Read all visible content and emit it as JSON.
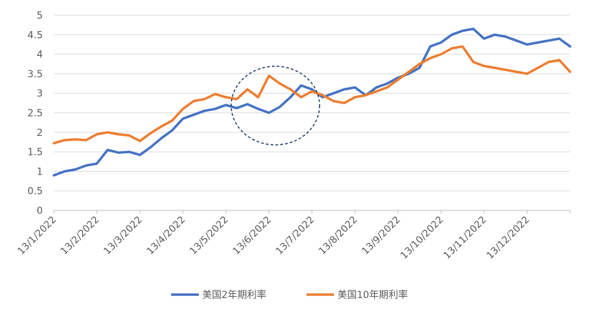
{
  "chart_data": {
    "type": "line",
    "title": "",
    "xlabel": "",
    "ylabel": "",
    "ylim": [
      0,
      5
    ],
    "yticks": [
      "0",
      "0.5",
      "1",
      "1.5",
      "2",
      "2.5",
      "3",
      "3.5",
      "4",
      "4.5",
      "5"
    ],
    "grid": "horizontal",
    "legend_position": "bottom",
    "xticks": [
      "13/1/2022",
      "13/2/2022",
      "13/3/2022",
      "13/4/2022",
      "13/5/2022",
      "13/6/2022",
      "13/7/2022",
      "13/8/2022",
      "13/9/2022",
      "13/10/2022",
      "13/11/2022",
      "13/12/2022"
    ],
    "x": [
      "13/1/2022",
      "20/1/2022",
      "27/1/2022",
      "3/2/2022",
      "13/2/2022",
      "20/2/2022",
      "27/2/2022",
      "6/3/2022",
      "13/3/2022",
      "20/3/2022",
      "27/3/2022",
      "3/4/2022",
      "13/4/2022",
      "20/4/2022",
      "27/4/2022",
      "4/5/2022",
      "13/5/2022",
      "20/5/2022",
      "27/5/2022",
      "3/6/2022",
      "13/6/2022",
      "20/6/2022",
      "27/6/2022",
      "4/7/2022",
      "13/7/2022",
      "20/7/2022",
      "27/7/2022",
      "3/8/2022",
      "13/8/2022",
      "20/8/2022",
      "27/8/2022",
      "3/9/2022",
      "13/9/2022",
      "20/9/2022",
      "27/9/2022",
      "4/10/2022",
      "13/10/2022",
      "20/10/2022",
      "27/10/2022",
      "3/11/2022",
      "13/11/2022",
      "20/11/2022",
      "27/11/2022",
      "4/12/2022",
      "13/12/2022",
      "20/12/2022",
      "27/12/2022",
      "3/1/2023",
      "13/1/2023"
    ],
    "series": [
      {
        "name": "美国2年期利率",
        "color": "#4472C4",
        "values": [
          0.9,
          1.0,
          1.05,
          1.15,
          1.2,
          1.55,
          1.48,
          1.5,
          1.42,
          1.62,
          1.85,
          2.05,
          2.35,
          2.45,
          2.55,
          2.6,
          2.7,
          2.62,
          2.72,
          2.6,
          2.5,
          2.65,
          2.9,
          3.2,
          3.1,
          2.9,
          3.0,
          3.1,
          3.15,
          2.95,
          3.15,
          3.25,
          3.4,
          3.5,
          3.65,
          4.2,
          4.3,
          4.5,
          4.6,
          4.65,
          4.4,
          4.5,
          4.45,
          4.35,
          4.25,
          4.3,
          4.35,
          4.4,
          4.2
        ]
      },
      {
        "name": "美国10年期利率",
        "color": "#ED7D31",
        "values": [
          1.72,
          1.8,
          1.82,
          1.8,
          1.95,
          2.0,
          1.95,
          1.92,
          1.78,
          1.98,
          2.15,
          2.3,
          2.6,
          2.8,
          2.85,
          2.98,
          2.9,
          2.85,
          3.1,
          2.9,
          3.45,
          3.25,
          3.1,
          2.9,
          3.05,
          2.95,
          2.8,
          2.75,
          2.9,
          2.95,
          3.05,
          3.15,
          3.35,
          3.55,
          3.75,
          3.9,
          4.0,
          4.15,
          4.2,
          3.8,
          3.7,
          3.65,
          3.6,
          3.55,
          3.5,
          3.65,
          3.8,
          3.85,
          3.55
        ]
      }
    ]
  }
}
